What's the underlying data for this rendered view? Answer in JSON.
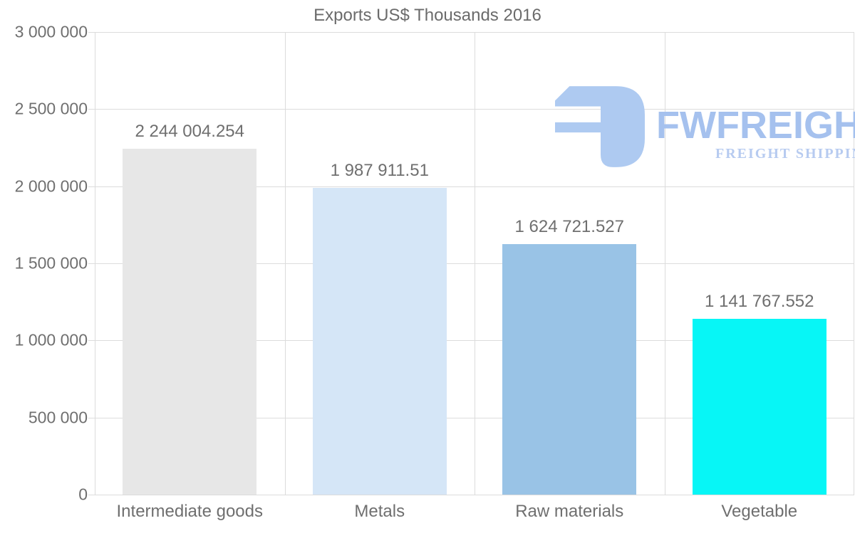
{
  "title": "Exports US$ Thousands 2016",
  "watermark": {
    "brand": "FWFREIGHT",
    "tagline": "FREIGHT SHIPPING",
    "icon": "fwfreight-logo-mark",
    "brand_color": "#a5c1ee",
    "tagline_color": "#b7cbf0",
    "icon_color": "#aecaf1"
  },
  "colors": {
    "text": "#6f6f6f",
    "grid": "#dcdcdc",
    "background": "#ffffff"
  },
  "chart_data": {
    "type": "bar",
    "title": "Exports US$ Thousands 2016",
    "categories": [
      "Intermediate goods",
      "Metals",
      "Raw materials",
      "Vegetable"
    ],
    "values": [
      2244004.254,
      1987911.51,
      1624721.527,
      1141767.552
    ],
    "value_labels": [
      "2 244 004.254",
      "1 987 911.51",
      "1 624 721.527",
      "1 141 767.552"
    ],
    "bar_colors": [
      "#e7e7e7",
      "#d5e6f7",
      "#99c3e6",
      "#07f6f6"
    ],
    "ylim": [
      0,
      3000000
    ],
    "y_tick_interval": 500000,
    "y_tick_labels": [
      "0",
      "500 000",
      "1 000 000",
      "1 500 000",
      "2 000 000",
      "2 500 000",
      "3 000 000"
    ],
    "xlabel": "",
    "ylabel": "",
    "grid": "horizontal-and-vertical",
    "legend": "none"
  }
}
